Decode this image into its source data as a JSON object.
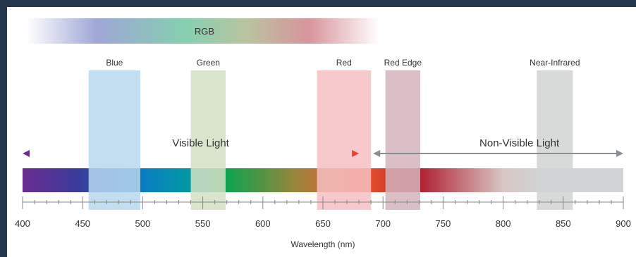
{
  "rgb_bar": {
    "label": "RGB"
  },
  "bands": [
    {
      "label": "Blue",
      "from": 455,
      "to": 498,
      "color": "#b9d7ee"
    },
    {
      "label": "Green",
      "from": 540,
      "to": 569,
      "color": "#d5dfc4"
    },
    {
      "label": "Red",
      "from": 645,
      "to": 690,
      "color": "#f6bfc3"
    },
    {
      "label": "Red Edge",
      "from": 702,
      "to": 731,
      "color": "#d3b4bc"
    },
    {
      "label": "Near-Infrared",
      "from": 828,
      "to": 858,
      "color": "#d1d3d4"
    }
  ],
  "ranges": {
    "visible": {
      "label": "Visible Light",
      "from": 400,
      "to": 680,
      "color_start": "#6a2c91",
      "color_end": "#e8412c"
    },
    "non_visible": {
      "label": "Non-Visible Light",
      "from": 690,
      "to": 900,
      "color": "#8a8f94"
    }
  },
  "axis": {
    "min": 400,
    "max": 900,
    "ticks": [
      "400",
      "450",
      "500",
      "550",
      "600",
      "650",
      "700",
      "750",
      "800",
      "850",
      "900"
    ],
    "title": "Wavelength (nm)"
  },
  "colors": {
    "frame": "#24364b",
    "axis": "#888888",
    "spectrum_violet": "#6a2c91",
    "spectrum_blue": "#0a7cc1",
    "spectrum_green": "#00a651",
    "spectrum_orange": "#f15a29",
    "spectrum_red": "#b01e2f",
    "spectrum_nir": "#d1d3d4"
  }
}
